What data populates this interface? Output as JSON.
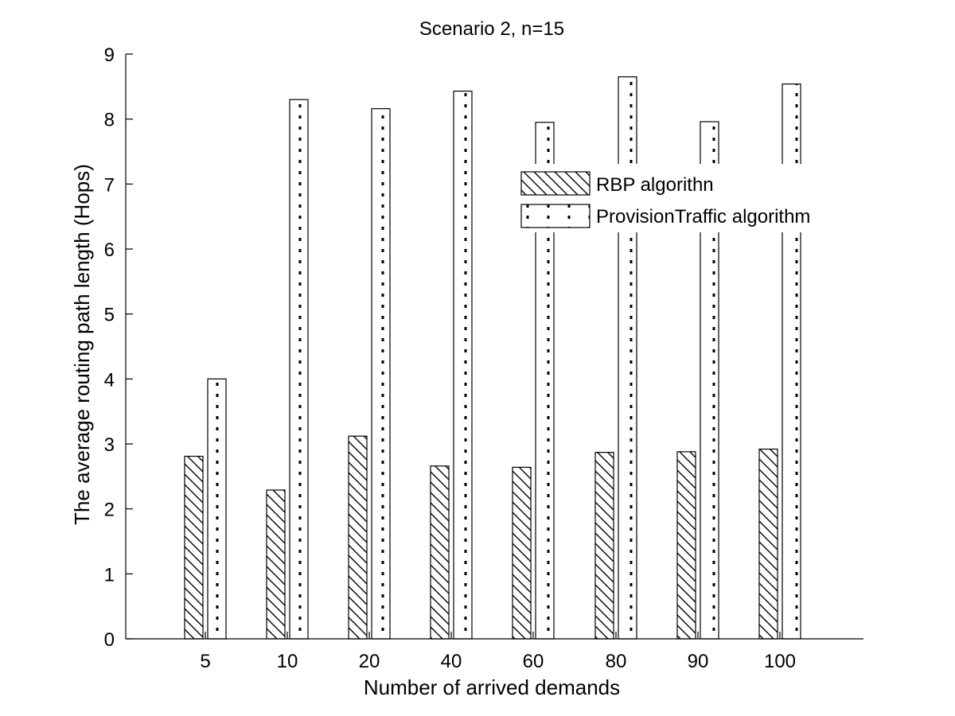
{
  "chart_data": {
    "type": "bar",
    "title": "Scenario 2, n=15",
    "xlabel": "Number of arrived demands",
    "ylabel": "The average routing path length (Hops)",
    "categories": [
      "5",
      "10",
      "20",
      "40",
      "60",
      "80",
      "90",
      "100"
    ],
    "ylim": [
      0,
      9
    ],
    "yticks": [
      0,
      1,
      2,
      3,
      4,
      5,
      6,
      7,
      8,
      9
    ],
    "grid": false,
    "legend_position": "top-right",
    "series": [
      {
        "name": "RBP algorithn",
        "pattern": "diagonal-hatch",
        "values": [
          2.81,
          2.29,
          3.12,
          2.66,
          2.64,
          2.87,
          2.88,
          2.92
        ]
      },
      {
        "name": "ProvisionTraffic algorithm",
        "pattern": "dotted",
        "values": [
          4.0,
          8.3,
          8.16,
          8.43,
          7.95,
          8.65,
          7.96,
          8.54
        ]
      }
    ]
  },
  "colors": {
    "bar_fill": "#ffffff",
    "stroke": "#000000",
    "background": "#ffffff"
  }
}
